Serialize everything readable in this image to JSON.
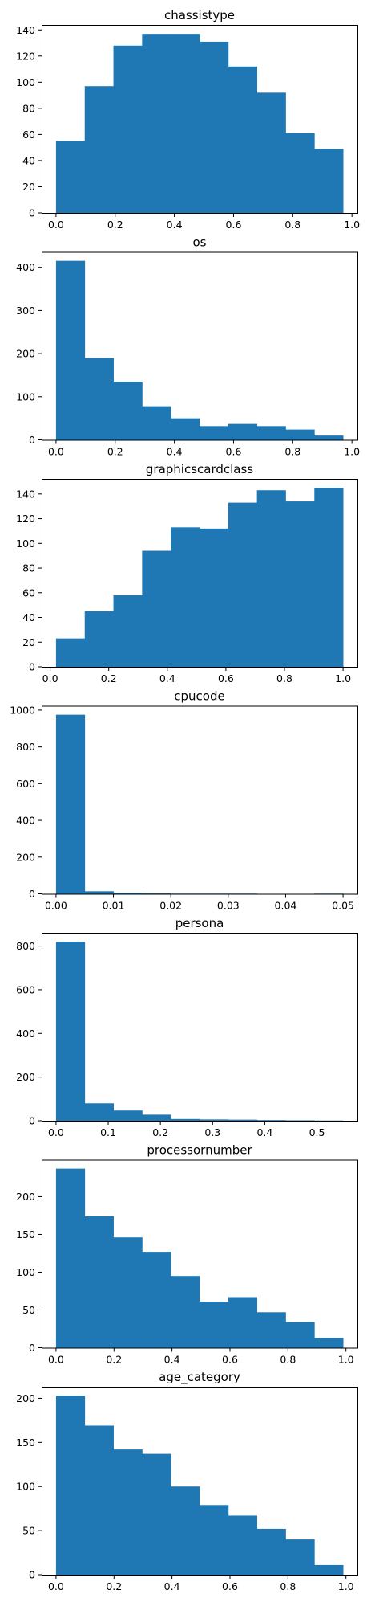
{
  "bar_color": "#1f77b4",
  "chart_data": [
    {
      "type": "bar",
      "title": "chassistype",
      "xlabel": "",
      "ylabel": "",
      "bin_edges": [
        0.0,
        0.097,
        0.194,
        0.291,
        0.388,
        0.485,
        0.582,
        0.679,
        0.776,
        0.873,
        0.97
      ],
      "values": [
        55,
        97,
        128,
        137,
        137,
        131,
        112,
        92,
        61,
        49
      ],
      "xlim": [
        -0.0485,
        1.0185
      ],
      "ylim": [
        0,
        143.85
      ],
      "xticks": [
        0.0,
        0.2,
        0.4,
        0.6,
        0.8,
        1.0
      ],
      "xtick_labels": [
        "0.0",
        "0.2",
        "0.4",
        "0.6",
        "0.8",
        "1.0"
      ],
      "yticks": [
        0,
        20,
        40,
        60,
        80,
        100,
        120,
        140
      ],
      "ytick_labels": [
        "0",
        "20",
        "40",
        "60",
        "80",
        "100",
        "120",
        "140"
      ]
    },
    {
      "type": "bar",
      "title": "os",
      "xlabel": "",
      "ylabel": "",
      "bin_edges": [
        0.0,
        0.097,
        0.194,
        0.291,
        0.388,
        0.485,
        0.582,
        0.679,
        0.776,
        0.873,
        0.97
      ],
      "values": [
        415,
        190,
        135,
        78,
        50,
        32,
        37,
        32,
        24,
        10
      ],
      "xlim": [
        -0.0485,
        1.0185
      ],
      "ylim": [
        0,
        435.75
      ],
      "xticks": [
        0.0,
        0.2,
        0.4,
        0.6,
        0.8,
        1.0
      ],
      "xtick_labels": [
        "0.0",
        "0.2",
        "0.4",
        "0.6",
        "0.8",
        "1.0"
      ],
      "yticks": [
        0,
        100,
        200,
        300,
        400
      ],
      "ytick_labels": [
        "0",
        "100",
        "200",
        "300",
        "400"
      ]
    },
    {
      "type": "bar",
      "title": "graphicscardclass",
      "xlabel": "",
      "ylabel": "",
      "bin_edges": [
        0.02,
        0.118,
        0.216,
        0.314,
        0.412,
        0.51,
        0.608,
        0.706,
        0.804,
        0.902,
        1.0
      ],
      "values": [
        23,
        45,
        58,
        94,
        113,
        112,
        133,
        143,
        134,
        145
      ],
      "xlim": [
        -0.029,
        1.049
      ],
      "ylim": [
        0,
        152.25
      ],
      "xticks": [
        0.0,
        0.2,
        0.4,
        0.6,
        0.8,
        1.0
      ],
      "xtick_labels": [
        "0.0",
        "0.2",
        "0.4",
        "0.6",
        "0.8",
        "1.0"
      ],
      "yticks": [
        0,
        20,
        40,
        60,
        80,
        100,
        120,
        140
      ],
      "ytick_labels": [
        "0",
        "20",
        "40",
        "60",
        "80",
        "100",
        "120",
        "140"
      ]
    },
    {
      "type": "bar",
      "title": "cpucode",
      "xlabel": "",
      "ylabel": "",
      "bin_edges": [
        0.0,
        0.005,
        0.01,
        0.015,
        0.02,
        0.025,
        0.03,
        0.035,
        0.04,
        0.045,
        0.05
      ],
      "values": [
        975,
        14,
        5,
        2,
        1,
        1,
        1,
        0,
        0,
        1
      ],
      "xlim": [
        -0.0025,
        0.0525
      ],
      "ylim": [
        0,
        1023.75
      ],
      "xticks": [
        0.0,
        0.01,
        0.02,
        0.03,
        0.04,
        0.05
      ],
      "xtick_labels": [
        "0.00",
        "0.01",
        "0.02",
        "0.03",
        "0.04",
        "0.05"
      ],
      "yticks": [
        0,
        200,
        400,
        600,
        800,
        1000
      ],
      "ytick_labels": [
        "0",
        "200",
        "400",
        "600",
        "800",
        "1000"
      ]
    },
    {
      "type": "bar",
      "title": "persona",
      "xlabel": "",
      "ylabel": "",
      "bin_edges": [
        0.0,
        0.055,
        0.11,
        0.165,
        0.22,
        0.275,
        0.33,
        0.385,
        0.44,
        0.495,
        0.55
      ],
      "values": [
        820,
        80,
        47,
        28,
        8,
        6,
        5,
        3,
        2,
        1
      ],
      "xlim": [
        -0.0275,
        0.5775
      ],
      "ylim": [
        0,
        861
      ],
      "xticks": [
        0.0,
        0.1,
        0.2,
        0.3,
        0.4,
        0.5
      ],
      "xtick_labels": [
        "0.0",
        "0.1",
        "0.2",
        "0.3",
        "0.4",
        "0.5"
      ],
      "yticks": [
        0,
        200,
        400,
        600,
        800
      ],
      "ytick_labels": [
        "0",
        "200",
        "400",
        "600",
        "800"
      ]
    },
    {
      "type": "bar",
      "title": "processornumber",
      "xlabel": "",
      "ylabel": "",
      "bin_edges": [
        0.0,
        0.099,
        0.198,
        0.297,
        0.396,
        0.495,
        0.594,
        0.693,
        0.792,
        0.891,
        0.99
      ],
      "values": [
        237,
        174,
        146,
        127,
        95,
        61,
        67,
        47,
        34,
        13
      ],
      "xlim": [
        -0.0495,
        1.0395
      ],
      "ylim": [
        0,
        248.85
      ],
      "xticks": [
        0.0,
        0.2,
        0.4,
        0.6,
        0.8,
        1.0
      ],
      "xtick_labels": [
        "0.0",
        "0.2",
        "0.4",
        "0.6",
        "0.8",
        "1.0"
      ],
      "yticks": [
        0,
        50,
        100,
        150,
        200
      ],
      "ytick_labels": [
        "0",
        "50",
        "100",
        "150",
        "200"
      ]
    },
    {
      "type": "bar",
      "title": "age_category",
      "xlabel": "",
      "ylabel": "",
      "bin_edges": [
        0.0,
        0.099,
        0.198,
        0.297,
        0.396,
        0.495,
        0.594,
        0.693,
        0.792,
        0.891,
        0.99
      ],
      "values": [
        203,
        169,
        142,
        137,
        100,
        79,
        67,
        52,
        40,
        11
      ],
      "xlim": [
        -0.0495,
        1.0395
      ],
      "ylim": [
        0,
        213.15
      ],
      "xticks": [
        0.0,
        0.2,
        0.4,
        0.6,
        0.8,
        1.0
      ],
      "xtick_labels": [
        "0.0",
        "0.2",
        "0.4",
        "0.6",
        "0.8",
        "1.0"
      ],
      "yticks": [
        0,
        50,
        100,
        150,
        200
      ],
      "ytick_labels": [
        "0",
        "50",
        "100",
        "150",
        "200"
      ]
    }
  ]
}
